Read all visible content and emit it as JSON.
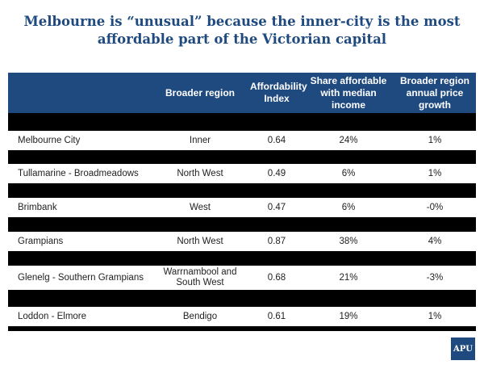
{
  "title": "Melbourne is “unusual” because the inner-city is the most affordable part of the Victorian capital",
  "table": {
    "headers": [
      "",
      "Broader region",
      "Affordability Index",
      "Share affordable with median income",
      "Broader region annual price growth"
    ],
    "rows": [
      {
        "name": "Melbourne City",
        "region": "Inner",
        "index": "0.64",
        "share": "24%",
        "growth": "1%"
      },
      {
        "name": "Tullamarine - Broadmeadows",
        "region": "North West",
        "index": "0.49",
        "share": "6%",
        "growth": "1%"
      },
      {
        "name": "Brimbank",
        "region": "West",
        "index": "0.47",
        "share": "6%",
        "growth": "-0%"
      },
      {
        "name": "Grampians",
        "region": "North West",
        "index": "0.87",
        "share": "38%",
        "growth": "4%"
      },
      {
        "name": "Glenelg - Southern Grampians",
        "region": "Warrnambool and South West",
        "index": "0.68",
        "share": "21%",
        "growth": "-3%"
      },
      {
        "name": "Loddon - Elmore",
        "region": "Bendigo",
        "index": "0.61",
        "share": "19%",
        "growth": "1%"
      }
    ]
  },
  "logo": {
    "text": "APU"
  },
  "colors": {
    "header_bg": "#1f4a80",
    "title": "#1f4a80",
    "panel_bg": "#000000"
  }
}
